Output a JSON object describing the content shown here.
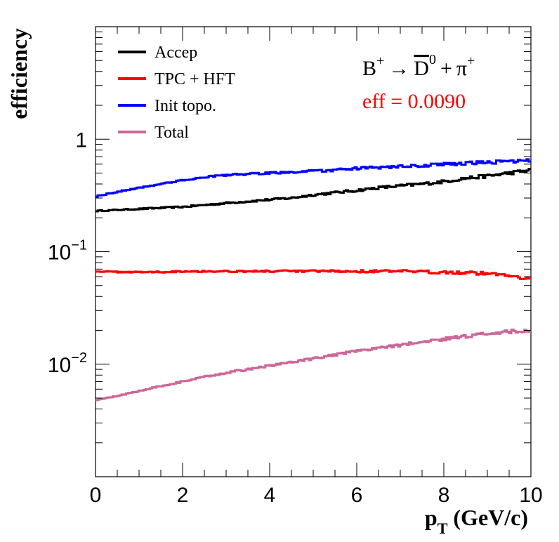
{
  "chart_data": {
    "type": "line",
    "xlabel": "p",
    "xlabel_sub": "T",
    "xlabel_unit": "(GeV/c)",
    "ylabel": "efficiency",
    "xlim": [
      0,
      10
    ],
    "ylim": [
      0.001,
      10
    ],
    "yscale": "log",
    "grid": false,
    "legend_position": "top-left",
    "x_ticks": [
      0,
      2,
      4,
      6,
      8,
      10
    ],
    "x_tick_labels": [
      "0",
      "2",
      "4",
      "6",
      "8",
      "10"
    ],
    "y_ticks": [
      {
        "value": 1,
        "base": "1",
        "exp": ""
      },
      {
        "value": 0.1,
        "base": "10",
        "exp": "−1"
      },
      {
        "value": 0.01,
        "base": "10",
        "exp": "−2"
      }
    ],
    "x": [
      0,
      0.5,
      1,
      1.5,
      2,
      2.5,
      3,
      3.5,
      4,
      4.5,
      5,
      5.5,
      6,
      6.5,
      7,
      7.5,
      8,
      8.5,
      9,
      9.5,
      10
    ],
    "series": [
      {
        "name": "Accep",
        "color": "#000000",
        "values": [
          0.23,
          0.235,
          0.24,
          0.245,
          0.25,
          0.26,
          0.27,
          0.28,
          0.29,
          0.3,
          0.32,
          0.335,
          0.35,
          0.37,
          0.385,
          0.4,
          0.42,
          0.45,
          0.47,
          0.5,
          0.53
        ]
      },
      {
        "name": "TPC + HFT",
        "color": "#ff0000",
        "values": [
          0.067,
          0.066,
          0.066,
          0.066,
          0.067,
          0.067,
          0.067,
          0.067,
          0.067,
          0.067,
          0.067,
          0.067,
          0.067,
          0.067,
          0.067,
          0.066,
          0.066,
          0.065,
          0.064,
          0.062,
          0.057
        ]
      },
      {
        "name": "Init topo.",
        "color": "#0000ff",
        "values": [
          0.31,
          0.34,
          0.37,
          0.4,
          0.43,
          0.46,
          0.48,
          0.49,
          0.5,
          0.51,
          0.52,
          0.53,
          0.55,
          0.56,
          0.57,
          0.58,
          0.6,
          0.61,
          0.62,
          0.64,
          0.64
        ]
      },
      {
        "name": "Total",
        "color": "#cc6699",
        "values": [
          0.0048,
          0.0052,
          0.0058,
          0.0064,
          0.007,
          0.0077,
          0.0084,
          0.009,
          0.0097,
          0.0104,
          0.0112,
          0.0121,
          0.013,
          0.0139,
          0.0148,
          0.0157,
          0.0167,
          0.0177,
          0.0187,
          0.0195,
          0.02
        ]
      }
    ],
    "annotation": {
      "decay": {
        "parent": "B",
        "parent_sup": "+",
        "arrow": "→",
        "daughter": "D",
        "daughter_sup": "0",
        "plus": "+",
        "pion": "π",
        "pion_sup": "+"
      },
      "eff_text": "eff = 0.0090",
      "eff_color": "#ff0000"
    }
  }
}
